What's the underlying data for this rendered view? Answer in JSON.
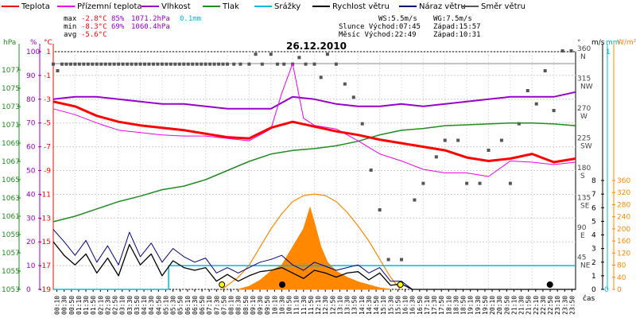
{
  "chart_data": {
    "type": "line",
    "title": "26.12.2010",
    "legend": [
      {
        "name": "Teplota",
        "color": "#ff0000"
      },
      {
        "name": "Přízemní teplota",
        "color": "#ee00ee"
      },
      {
        "name": "Vlhkost",
        "color": "#9900cc"
      },
      {
        "name": "Tlak",
        "color": "#228b22"
      },
      {
        "name": "Srážky",
        "color": "#00bbdd"
      },
      {
        "name": "Rychlost větru",
        "color": "#000000"
      },
      {
        "name": "Náraz větru",
        "color": "#000080"
      },
      {
        "name": "Směr větru",
        "color": "#555555"
      }
    ],
    "stats": {
      "max": {
        "label": "max",
        "temp": "-2.8°C",
        "hum": "85%",
        "press": "1071.2hPa",
        "rain": "0.1mm"
      },
      "min": {
        "label": "min",
        "temp": "-8.3°C",
        "hum": "69%",
        "press": "1060.4hPa"
      },
      "avg": {
        "label": "avg",
        "temp": "-5.6°C"
      }
    },
    "info": {
      "ws": "WS:5.5m/s",
      "wg": "WG:7.5m/s",
      "slunce": "Slunce Východ:07:45",
      "slunce_zapad": "Západ:15:57",
      "mesic": "Měsíc  Východ:22:49",
      "mesic_zapad": "Západ:10:31"
    },
    "axes": {
      "hpa": {
        "label": "hPa",
        "ticks": [
          "1077",
          "1075",
          "1073",
          "1071",
          "1069",
          "1067",
          "1065",
          "1063",
          "1061",
          "1059",
          "1057",
          "1055",
          "1053"
        ]
      },
      "pct": {
        "label": "%",
        "ticks": [
          "100",
          "90",
          "80",
          "70",
          "60",
          "50",
          "40",
          "30",
          "20",
          "10",
          "0"
        ]
      },
      "temp": {
        "label": "°C",
        "ticks": [
          "1",
          "-1",
          "-3",
          "-5",
          "-7",
          "-9",
          "-11",
          "-13",
          "-15",
          "-17",
          "-19"
        ],
        "range": [
          -19,
          1
        ]
      },
      "dir": {
        "label": "°",
        "ticks": [
          "360",
          "315",
          "270",
          "225",
          "180",
          "135",
          "90",
          "45"
        ],
        "names": [
          "N",
          "NW",
          "W",
          "SW",
          "S",
          "SE",
          "E",
          "NE"
        ]
      },
      "ms": {
        "label": "m/s",
        "ticks": [
          "8",
          "7",
          "6",
          "5",
          "4",
          "3",
          "2",
          "1",
          "0"
        ]
      },
      "mm": {
        "label": "mm",
        "top": "1",
        "bottom": "0"
      },
      "wm2": {
        "label": "W/m²",
        "ticks": [
          "360",
          "320",
          "280",
          "240",
          "200",
          "160",
          "120",
          "80",
          "40",
          "0"
        ]
      },
      "time_label": "čas"
    },
    "times": [
      "00:10",
      "00:30",
      "00:50",
      "01:10",
      "01:30",
      "01:50",
      "02:10",
      "02:30",
      "02:50",
      "03:10",
      "03:30",
      "03:50",
      "04:10",
      "04:30",
      "04:50",
      "05:10",
      "05:30",
      "05:50",
      "06:10",
      "06:30",
      "06:50",
      "07:10",
      "07:30",
      "07:50",
      "08:10",
      "08:30",
      "08:50",
      "09:10",
      "09:30",
      "09:50",
      "10:10",
      "10:30",
      "10:50",
      "11:10",
      "11:30",
      "11:50",
      "12:10",
      "12:30",
      "12:50",
      "13:10",
      "13:30",
      "13:50",
      "14:10",
      "14:30",
      "14:50",
      "15:10",
      "15:30",
      "15:50",
      "16:10",
      "16:30",
      "16:50",
      "17:10",
      "17:30",
      "17:50",
      "18:10",
      "18:30",
      "18:50",
      "19:10",
      "19:30",
      "19:50",
      "20:10",
      "20:30",
      "20:50",
      "21:10",
      "21:30",
      "21:50",
      "22:10",
      "22:30",
      "22:50",
      "23:10",
      "23:30",
      "23:50"
    ],
    "series": [
      {
        "name": "Teplota",
        "unit": "°C",
        "color": "#ff0000",
        "x": [
          0,
          1,
          2,
          3,
          4,
          5,
          6,
          7,
          8,
          9,
          10,
          11,
          12,
          13,
          14,
          15,
          16,
          17,
          18,
          19,
          20,
          21,
          22,
          23,
          24
        ],
        "y": [
          -3.2,
          -3.6,
          -4.4,
          -4.9,
          -5.2,
          -5.4,
          -5.6,
          -5.9,
          -6.2,
          -6.3,
          -5.4,
          -4.9,
          -5.3,
          -5.7,
          -6.0,
          -6.4,
          -6.7,
          -7.0,
          -7.3,
          -7.9,
          -8.2,
          -8.0,
          -7.6,
          -8.3,
          -8.0
        ]
      },
      {
        "name": "Přízemní teplota",
        "unit": "°C",
        "color": "#ee00ee",
        "x": [
          0,
          1,
          2,
          3,
          4,
          5,
          6,
          7,
          8,
          9,
          10,
          10.5,
          11,
          11.5,
          12,
          13,
          14,
          15,
          16,
          17,
          18,
          19,
          20,
          21,
          22,
          23,
          24
        ],
        "y": [
          -3.8,
          -4.3,
          -5.0,
          -5.6,
          -5.8,
          -6.0,
          -6.1,
          -6.1,
          -6.3,
          -6.5,
          -5.5,
          -2.5,
          0.0,
          -4.6,
          -5.2,
          -5.5,
          -6.5,
          -7.6,
          -8.2,
          -8.9,
          -9.2,
          -9.2,
          -9.5,
          -8.2,
          -8.3,
          -8.5,
          -8.3
        ]
      },
      {
        "name": "Vlhkost",
        "unit": "%",
        "color": "#9900cc",
        "x": [
          0,
          1,
          2,
          3,
          4,
          5,
          6,
          7,
          8,
          9,
          10,
          11,
          12,
          13,
          14,
          15,
          16,
          17,
          18,
          19,
          20,
          21,
          22,
          23,
          24
        ],
        "y": [
          80,
          81,
          81,
          80,
          79,
          78,
          78,
          77,
          76,
          76,
          76,
          81,
          80,
          78,
          77,
          77,
          78,
          77,
          78,
          79,
          80,
          81,
          81,
          81,
          83
        ]
      },
      {
        "name": "Tlak",
        "unit": "hPa",
        "color": "#228b22",
        "x": [
          0,
          1,
          2,
          3,
          4,
          5,
          6,
          7,
          8,
          9,
          10,
          11,
          12,
          13,
          14,
          15,
          16,
          17,
          18,
          19,
          20,
          21,
          22,
          23,
          24
        ],
        "y": [
          1060.4,
          1061.0,
          1061.8,
          1062.6,
          1063.2,
          1063.9,
          1064.3,
          1065.0,
          1066.0,
          1067.0,
          1067.8,
          1068.2,
          1068.4,
          1068.7,
          1069.2,
          1069.9,
          1070.4,
          1070.6,
          1070.9,
          1071.0,
          1071.1,
          1071.2,
          1071.2,
          1071.1,
          1070.9
        ]
      },
      {
        "name": "Rychlost větru",
        "unit": "m/s",
        "color": "#000000",
        "x": [
          0,
          0.5,
          1,
          1.5,
          2,
          2.5,
          3,
          3.5,
          4,
          4.5,
          5,
          5.5,
          6,
          6.5,
          7,
          7.5,
          8,
          8.5,
          9,
          9.5,
          10,
          10.5,
          11,
          11.5,
          12,
          12.5,
          13,
          13.5,
          14,
          14.5,
          15,
          15.5,
          16,
          16.5,
          17,
          18,
          19,
          20,
          21,
          22,
          23,
          24
        ],
        "y": [
          3.5,
          2.5,
          1.8,
          2.6,
          1.2,
          2.3,
          1.0,
          3.3,
          1.8,
          2.6,
          1.0,
          2.1,
          1.6,
          1.4,
          1.6,
          0.6,
          1.1,
          0.6,
          1.0,
          1.3,
          1.4,
          1.6,
          1.2,
          0.8,
          1.4,
          1.2,
          0.9,
          1.2,
          1.3,
          0.7,
          1.2,
          0.3,
          0.4,
          0.0,
          0.0,
          0.0,
          0.0,
          0.0,
          0.0,
          0.0,
          0.0,
          0.0
        ]
      },
      {
        "name": "Náraz větru",
        "unit": "m/s",
        "color": "#000080",
        "x": [
          0,
          0.5,
          1,
          1.5,
          2,
          2.5,
          3,
          3.5,
          4,
          4.5,
          5,
          5.5,
          6,
          6.5,
          7,
          7.5,
          8,
          8.5,
          9,
          9.5,
          10,
          10.5,
          11,
          11.5,
          12,
          12.5,
          13,
          13.5,
          14,
          14.5,
          15,
          15.5,
          16,
          16.5,
          17,
          18,
          19,
          20,
          21,
          22,
          23,
          24
        ],
        "y": [
          4.4,
          3.5,
          2.5,
          3.6,
          2.0,
          3.2,
          1.8,
          4.2,
          2.4,
          3.4,
          2.0,
          3.0,
          2.4,
          2.0,
          2.3,
          1.2,
          1.6,
          1.2,
          1.6,
          2.0,
          2.2,
          2.5,
          1.8,
          1.4,
          2.0,
          1.7,
          1.4,
          1.6,
          1.8,
          1.2,
          1.6,
          0.6,
          0.6,
          0.0,
          0.0,
          0.0,
          0.0,
          0.0,
          0.0,
          0.0,
          0.0,
          0.0
        ]
      },
      {
        "name": "Srážky",
        "unit": "mm",
        "color": "#00bbdd",
        "x": [
          0,
          5.3,
          5.3,
          24
        ],
        "y": [
          0,
          0,
          0.1,
          0.1
        ]
      },
      {
        "name": "Sluneční záření",
        "unit": "W/m²",
        "color": "#ff8800",
        "x": [
          7.75,
          8.5,
          9,
          9.5,
          10,
          10.5,
          11,
          11.5,
          12,
          12.5,
          13,
          13.5,
          14,
          14.5,
          15,
          15.5,
          15.95
        ],
        "y": [
          0,
          40,
          80,
          140,
          200,
          250,
          290,
          310,
          315,
          310,
          290,
          255,
          210,
          160,
          100,
          40,
          0
        ]
      },
      {
        "name": "Sluneční záření (naměřené)",
        "unit": "W/m²",
        "color": "#ff8800",
        "x": [
          8.5,
          9,
          9.5,
          10,
          10.5,
          11,
          11.5,
          11.8,
          12,
          12.3,
          12.6,
          13,
          13.5,
          14,
          14.5,
          15,
          15.5
        ],
        "y": [
          0,
          10,
          30,
          60,
          80,
          140,
          200,
          270,
          220,
          140,
          90,
          60,
          40,
          25,
          15,
          5,
          0
        ]
      },
      {
        "name": "Směr větru",
        "unit": "°",
        "color": "#555555",
        "x": [
          0,
          0.2,
          0.4,
          0.6,
          0.8,
          1,
          1.2,
          1.4,
          1.6,
          1.8,
          2,
          2.2,
          2.4,
          2.6,
          2.8,
          3,
          3.2,
          3.4,
          3.6,
          3.8,
          4,
          4.2,
          4.4,
          4.6,
          4.8,
          5,
          5.2,
          5.4,
          5.6,
          5.8,
          6,
          6.2,
          6.4,
          6.6,
          6.8,
          7,
          7.2,
          7.4,
          7.6,
          7.8,
          8,
          8.3,
          8.6,
          9,
          9.3,
          9.6,
          10,
          10.3,
          10.6,
          11,
          11.3,
          11.6,
          12,
          12.3,
          12.6,
          13,
          13.4,
          13.8,
          14.2,
          14.6,
          15,
          15.4,
          16,
          16.6,
          17,
          17.6,
          18,
          18.6,
          19,
          19.6,
          20,
          20.6,
          21,
          21.4,
          21.8,
          22.2,
          22.6,
          23,
          23.4,
          23.8
        ],
        "y": [
          340,
          330,
          340,
          340,
          340,
          340,
          340,
          340,
          340,
          340,
          340,
          340,
          340,
          340,
          340,
          340,
          340,
          340,
          340,
          340,
          340,
          340,
          340,
          340,
          340,
          340,
          340,
          340,
          340,
          340,
          340,
          340,
          340,
          340,
          340,
          340,
          340,
          340,
          340,
          340,
          340,
          340,
          340,
          340,
          355,
          340,
          355,
          340,
          340,
          340,
          350,
          340,
          340,
          320,
          355,
          340,
          310,
          290,
          250,
          180,
          120,
          45,
          45,
          135,
          160,
          200,
          225,
          225,
          160,
          160,
          210,
          225,
          160,
          250,
          300,
          280,
          330,
          270,
          360,
          360
        ]
      }
    ]
  }
}
